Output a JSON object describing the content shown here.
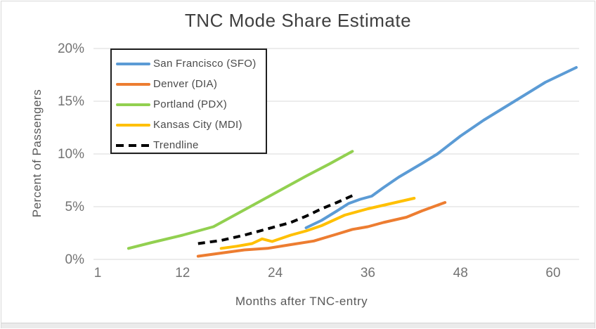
{
  "window": {
    "frame_border_color": "#d9d9d9",
    "bottom_bar_color": "#ebebeb"
  },
  "colors": {
    "title_text": "#3f3f3f",
    "axis_title_text": "#595959",
    "tick_text": "#737373",
    "gridline": "#d9d9d9",
    "legend_border": "#1f1f1f",
    "background": "#ffffff"
  },
  "chart_data": {
    "type": "line",
    "title": "TNC Mode Share Estimate",
    "xlabel": "Months after TNC-entry",
    "ylabel": "Percent of Passengers",
    "xlim": [
      1,
      63
    ],
    "ylim": [
      0,
      20
    ],
    "grid": "horizontal-only",
    "legend_position": "top-left-inside",
    "x_tick_values": [
      1,
      12,
      24,
      36,
      48,
      60
    ],
    "x_tick_labels": [
      "1",
      "12",
      "24",
      "36",
      "48",
      "60"
    ],
    "y_tick_values": [
      0,
      5,
      10,
      15,
      20
    ],
    "y_tick_labels": [
      "0%",
      "5%",
      "10%",
      "15%",
      "20%"
    ],
    "series": [
      {
        "name": "San Francisco (SFO)",
        "color": "#5B9BD5",
        "dash": null,
        "points": [
          [
            28,
            3.0
          ],
          [
            30,
            3.7
          ],
          [
            32,
            4.6
          ],
          [
            33.5,
            5.3
          ],
          [
            35,
            5.7
          ],
          [
            36.5,
            6.0
          ],
          [
            38,
            6.8
          ],
          [
            40,
            7.8
          ],
          [
            43,
            9.1
          ],
          [
            45,
            10.0
          ],
          [
            48,
            11.7
          ],
          [
            51,
            13.2
          ],
          [
            55,
            15.0
          ],
          [
            59,
            16.8
          ],
          [
            63,
            18.2
          ]
        ]
      },
      {
        "name": "Denver (DIA)",
        "color": "#ED7D31",
        "dash": null,
        "points": [
          [
            14,
            0.3
          ],
          [
            17,
            0.6
          ],
          [
            20,
            0.9
          ],
          [
            23,
            1.05
          ],
          [
            26,
            1.4
          ],
          [
            29,
            1.75
          ],
          [
            32,
            2.4
          ],
          [
            34,
            2.85
          ],
          [
            36,
            3.1
          ],
          [
            38,
            3.5
          ],
          [
            41,
            4.0
          ],
          [
            43,
            4.6
          ],
          [
            46,
            5.4
          ]
        ]
      },
      {
        "name": "Portland (PDX)",
        "color": "#92D050",
        "dash": null,
        "points": [
          [
            5,
            1.05
          ],
          [
            8,
            1.6
          ],
          [
            12,
            2.3
          ],
          [
            16,
            3.1
          ],
          [
            20,
            4.7
          ],
          [
            24,
            6.3
          ],
          [
            28,
            7.9
          ],
          [
            31,
            9.05
          ],
          [
            34,
            10.25
          ]
        ]
      },
      {
        "name": "Kansas City (MDI)",
        "color": "#FFC000",
        "dash": null,
        "points": [
          [
            17,
            1.05
          ],
          [
            19,
            1.25
          ],
          [
            21,
            1.5
          ],
          [
            22.3,
            1.95
          ],
          [
            23.6,
            1.7
          ],
          [
            26,
            2.3
          ],
          [
            28,
            2.7
          ],
          [
            30,
            3.2
          ],
          [
            33,
            4.2
          ],
          [
            36,
            4.8
          ],
          [
            39,
            5.3
          ],
          [
            42,
            5.8
          ]
        ]
      },
      {
        "name": "Trendline",
        "color": "#000000",
        "dash": "10 7",
        "points": [
          [
            14,
            1.5
          ],
          [
            17,
            1.8
          ],
          [
            20,
            2.3
          ],
          [
            23,
            2.9
          ],
          [
            26,
            3.5
          ],
          [
            28,
            4.1
          ],
          [
            30,
            4.8
          ],
          [
            32,
            5.4
          ],
          [
            34,
            6.05
          ]
        ]
      }
    ]
  }
}
